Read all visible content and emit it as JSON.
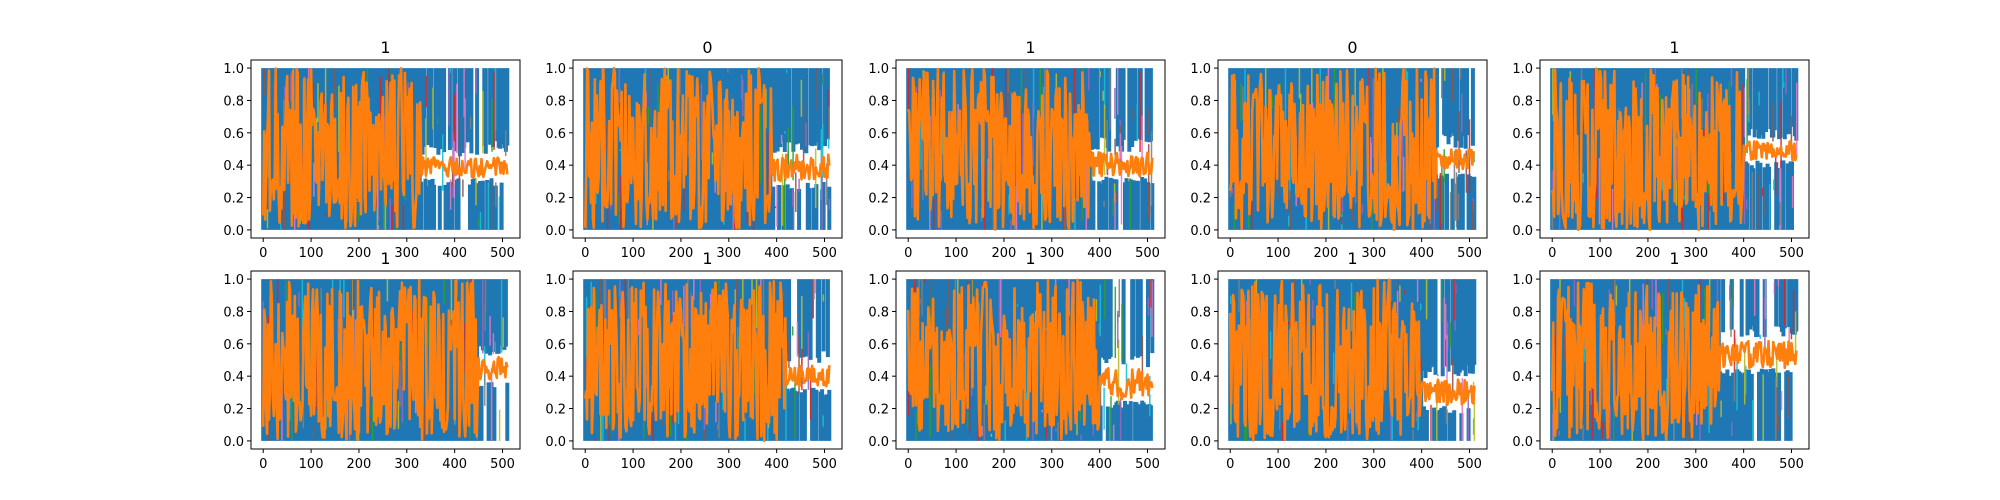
{
  "figure": {
    "panel_titles": [
      "1",
      "0",
      "1",
      "0",
      "1",
      "1",
      "1",
      "1",
      "1",
      "1"
    ]
  },
  "chart_data": [
    {
      "type": "line",
      "title": "1",
      "xlim": [
        0,
        511
      ],
      "ylim": [
        0.0,
        1.0
      ],
      "xticks": [
        0,
        100,
        200,
        300,
        400,
        500
      ],
      "yticks": [
        0.0,
        0.2,
        0.4,
        0.6,
        0.8,
        1.0
      ],
      "grid": false,
      "dominant_series_colors": [
        "#1f77b4",
        "#ff7f0e"
      ],
      "settle_x": 330,
      "settle_band": [
        0.32,
        0.45
      ]
    },
    {
      "type": "line",
      "title": "0",
      "xlim": [
        0,
        511
      ],
      "ylim": [
        0.0,
        1.0
      ],
      "xticks": [
        0,
        100,
        200,
        300,
        400,
        500
      ],
      "yticks": [
        0.0,
        0.2,
        0.4,
        0.6,
        0.8,
        1.0
      ],
      "grid": false,
      "dominant_series_colors": [
        "#1f77b4",
        "#ff7f0e"
      ],
      "settle_x": 390,
      "settle_band": [
        0.3,
        0.47
      ]
    },
    {
      "type": "line",
      "title": "1",
      "xlim": [
        0,
        511
      ],
      "ylim": [
        0.0,
        1.0
      ],
      "xticks": [
        0,
        100,
        200,
        300,
        400,
        500
      ],
      "yticks": [
        0.0,
        0.2,
        0.4,
        0.6,
        0.8,
        1.0
      ],
      "grid": false,
      "dominant_series_colors": [
        "#1f77b4",
        "#ff7f0e"
      ],
      "settle_x": 380,
      "settle_band": [
        0.33,
        0.48
      ]
    },
    {
      "type": "line",
      "title": "0",
      "xlim": [
        0,
        511
      ],
      "ylim": [
        0.0,
        1.0
      ],
      "xticks": [
        0,
        100,
        200,
        300,
        400,
        500
      ],
      "yticks": [
        0.0,
        0.2,
        0.4,
        0.6,
        0.8,
        1.0
      ],
      "grid": false,
      "dominant_series_colors": [
        "#1f77b4",
        "#ff7f0e"
      ],
      "settle_x": 430,
      "settle_band": [
        0.35,
        0.5
      ]
    },
    {
      "type": "line",
      "title": "1",
      "xlim": [
        0,
        511
      ],
      "ylim": [
        0.0,
        1.0
      ],
      "xticks": [
        0,
        100,
        200,
        300,
        400,
        500
      ],
      "yticks": [
        0.0,
        0.2,
        0.4,
        0.6,
        0.8,
        1.0
      ],
      "grid": false,
      "dominant_series_colors": [
        "#1f77b4",
        "#ff7f0e"
      ],
      "settle_x": 400,
      "settle_band": [
        0.43,
        0.55
      ]
    },
    {
      "type": "line",
      "title": "1",
      "xlim": [
        0,
        511
      ],
      "ylim": [
        0.0,
        1.0
      ],
      "xticks": [
        0,
        100,
        200,
        300,
        400,
        500
      ],
      "yticks": [
        0.0,
        0.2,
        0.4,
        0.6,
        0.8,
        1.0
      ],
      "grid": false,
      "dominant_series_colors": [
        "#1f77b4",
        "#ff7f0e"
      ],
      "settle_x": 450,
      "settle_band": [
        0.38,
        0.52
      ]
    },
    {
      "type": "line",
      "title": "1",
      "xlim": [
        0,
        511
      ],
      "ylim": [
        0.0,
        1.0
      ],
      "xticks": [
        0,
        100,
        200,
        300,
        400,
        500
      ],
      "yticks": [
        0.0,
        0.2,
        0.4,
        0.6,
        0.8,
        1.0
      ],
      "grid": false,
      "dominant_series_colors": [
        "#1f77b4",
        "#ff7f0e"
      ],
      "settle_x": 420,
      "settle_band": [
        0.33,
        0.47
      ]
    },
    {
      "type": "line",
      "title": "1",
      "xlim": [
        0,
        511
      ],
      "ylim": [
        0.0,
        1.0
      ],
      "xticks": [
        0,
        100,
        200,
        300,
        400,
        500
      ],
      "yticks": [
        0.0,
        0.2,
        0.4,
        0.6,
        0.8,
        1.0
      ],
      "grid": false,
      "dominant_series_colors": [
        "#1f77b4",
        "#ff7f0e"
      ],
      "settle_x": 400,
      "settle_band": [
        0.25,
        0.45
      ]
    },
    {
      "type": "line",
      "title": "1",
      "xlim": [
        0,
        511
      ],
      "ylim": [
        0.0,
        1.0
      ],
      "xticks": [
        0,
        100,
        200,
        300,
        400,
        500
      ],
      "yticks": [
        0.0,
        0.2,
        0.4,
        0.6,
        0.8,
        1.0
      ],
      "grid": false,
      "dominant_series_colors": [
        "#1f77b4",
        "#ff7f0e"
      ],
      "settle_x": 400,
      "settle_band": [
        0.22,
        0.38
      ]
    },
    {
      "type": "line",
      "title": "1",
      "xlim": [
        0,
        511
      ],
      "ylim": [
        0.0,
        1.0
      ],
      "xticks": [
        0,
        100,
        200,
        300,
        400,
        500
      ],
      "yticks": [
        0.0,
        0.2,
        0.4,
        0.6,
        0.8,
        1.0
      ],
      "grid": false,
      "dominant_series_colors": [
        "#1f77b4",
        "#ff7f0e"
      ],
      "settle_x": 350,
      "settle_band": [
        0.45,
        0.62
      ]
    }
  ]
}
